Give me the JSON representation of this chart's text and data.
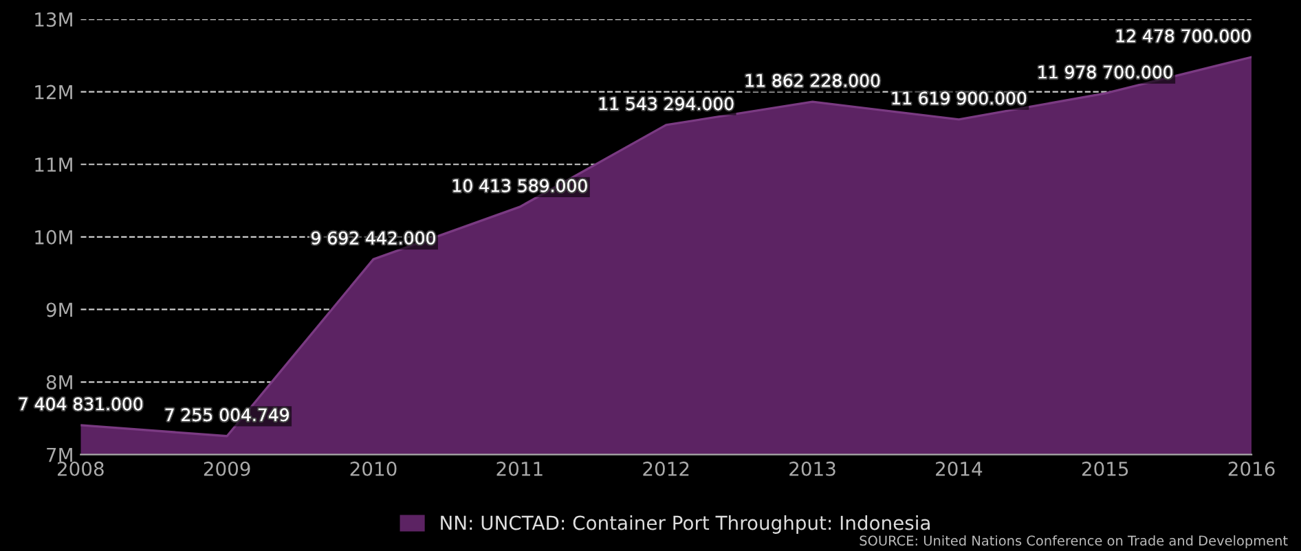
{
  "chart_data": {
    "type": "area",
    "x": [
      2008,
      2009,
      2010,
      2011,
      2012,
      2013,
      2014,
      2015,
      2016
    ],
    "series": [
      {
        "name": "NN: UNCTAD: Container Port Throughput: Indonesia",
        "color": "#5c2363",
        "values": [
          7404831.0,
          7255004.749,
          9692442.0,
          10413589.0,
          11543294.0,
          11862228.0,
          11619900.0,
          11978700.0,
          12478700.0
        ],
        "value_labels": [
          "7 404 831.000",
          "7 255 004.749",
          "9 692 442.000",
          "10 413 589.000",
          "11 543 294.000",
          "11 862 228.000",
          "11 619 900.000",
          "11 978 700.000",
          "12 478 700.000"
        ]
      }
    ],
    "xlim": [
      2008,
      2016
    ],
    "xticks": [
      2008,
      2009,
      2010,
      2011,
      2012,
      2013,
      2014,
      2015,
      2016
    ],
    "ylim": [
      7000000,
      13000000
    ],
    "yticks": [
      {
        "value": 7000000,
        "label": "7M"
      },
      {
        "value": 8000000,
        "label": "8M"
      },
      {
        "value": 9000000,
        "label": "9M"
      },
      {
        "value": 10000000,
        "label": "10M"
      },
      {
        "value": 11000000,
        "label": "11M"
      },
      {
        "value": 12000000,
        "label": "12M"
      },
      {
        "value": 13000000,
        "label": "13M"
      }
    ],
    "grid": "y",
    "legend": "bottom",
    "annotations": [
      "SOURCE: United Nations Conference on Trade and Development"
    ]
  }
}
